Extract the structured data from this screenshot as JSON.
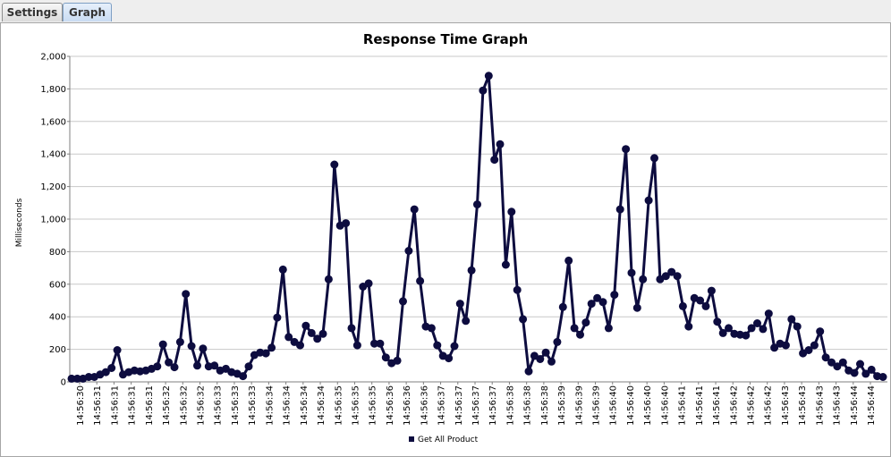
{
  "tabs": [
    {
      "label": "Settings",
      "selected": false
    },
    {
      "label": "Graph",
      "selected": true
    }
  ],
  "chart_data": {
    "type": "line",
    "title": "Response Time Graph",
    "xlabel": "",
    "ylabel": "Milliseconds",
    "ylim": [
      0,
      2000
    ],
    "y_ticks": [
      0,
      200,
      400,
      600,
      800,
      1000,
      1200,
      1400,
      1600,
      1800,
      2000
    ],
    "y_tick_labels": [
      "0",
      "200",
      "400",
      "600",
      "800",
      "1,000",
      "1,200",
      "1,400",
      "1,600",
      "1,800",
      "2,000"
    ],
    "x_tick_labels": [
      "14:56:30",
      "14:56:31",
      "14:56:31",
      "14:56:31",
      "14:56:31",
      "14:56:32",
      "14:56:32",
      "14:56:32",
      "14:56:33",
      "14:56:33",
      "14:56:33",
      "14:56:34",
      "14:56:34",
      "14:56:34",
      "14:56:34",
      "14:56:35",
      "14:56:35",
      "14:56:35",
      "14:56:36",
      "14:56:36",
      "14:56:36",
      "14:56:37",
      "14:56:37",
      "14:56:37",
      "14:56:37",
      "14:56:38",
      "14:56:38",
      "14:56:38",
      "14:56:39",
      "14:56:39",
      "14:56:39",
      "14:56:40",
      "14:56:40",
      "14:56:40",
      "14:56:40",
      "14:56:41",
      "14:56:41",
      "14:56:41",
      "14:56:42",
      "14:56:42",
      "14:56:42",
      "14:56:43",
      "14:56:43",
      "14:56:43",
      "14:56:43",
      "14:56:44",
      "14:56:44"
    ],
    "grid": true,
    "legend_position": "bottom",
    "series": [
      {
        "name": "Get All Product",
        "color": "#0d0c3f",
        "values": [
          20,
          20,
          20,
          30,
          30,
          45,
          60,
          85,
          195,
          45,
          60,
          70,
          65,
          70,
          80,
          95,
          230,
          120,
          90,
          245,
          540,
          220,
          100,
          205,
          95,
          100,
          70,
          80,
          60,
          50,
          35,
          95,
          165,
          180,
          175,
          210,
          395,
          690,
          275,
          245,
          225,
          345,
          300,
          265,
          295,
          630,
          1335,
          960,
          975,
          330,
          225,
          585,
          605,
          235,
          235,
          150,
          115,
          130,
          495,
          805,
          1060,
          620,
          340,
          330,
          225,
          160,
          145,
          220,
          480,
          375,
          685,
          1090,
          1790,
          1880,
          1365,
          1460,
          720,
          1045,
          565,
          385,
          65,
          160,
          140,
          180,
          125,
          245,
          460,
          745,
          330,
          290,
          365,
          480,
          515,
          490,
          330,
          535,
          1060,
          1430,
          670,
          455,
          630,
          1115,
          1375,
          630,
          650,
          675,
          650,
          465,
          340,
          515,
          500,
          465,
          560,
          370,
          300,
          330,
          295,
          290,
          285,
          330,
          360,
          325,
          420,
          210,
          235,
          225,
          385,
          340,
          175,
          195,
          225,
          310,
          150,
          120,
          95,
          120,
          70,
          55,
          110,
          50,
          75,
          35,
          30
        ]
      }
    ]
  }
}
